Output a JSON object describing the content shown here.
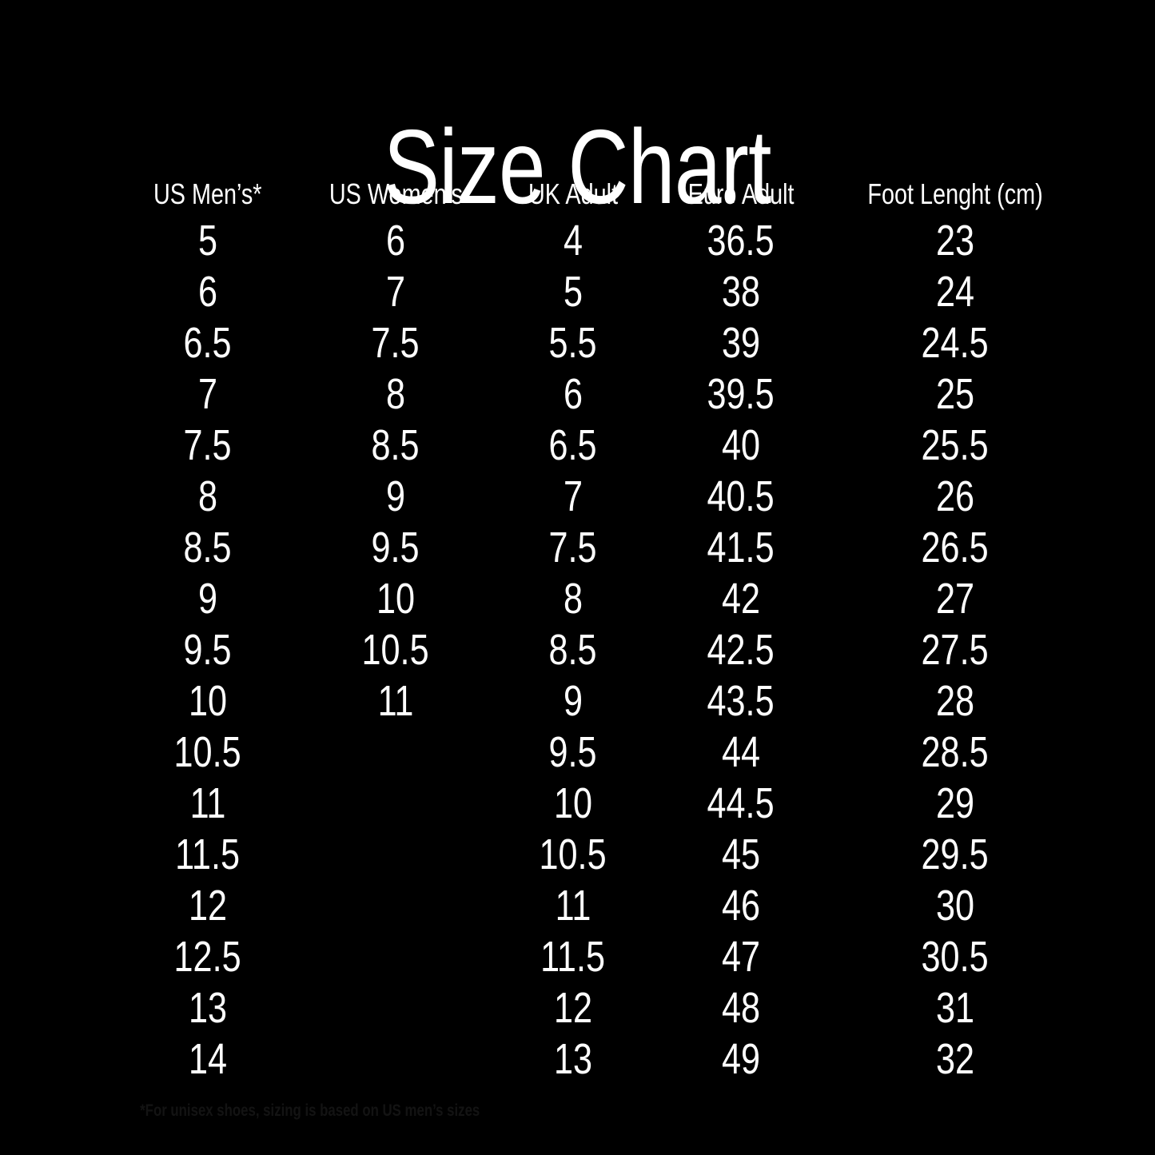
{
  "page": {
    "background_color": "#000000",
    "text_color": "#ffffff",
    "footnote_color": "#131313"
  },
  "title": "Size Chart",
  "footnote": {
    "text": "*For unisex shoes, sizing is based on US men’s sizes"
  },
  "chart_data": {
    "type": "table",
    "title": "Size Chart",
    "columns": [
      "US Men’s*",
      "US Women’s",
      "UK Adult",
      "Euro Adult",
      "Foot Lenght (cm)"
    ],
    "rows": [
      [
        "5",
        "6",
        "4",
        "36.5",
        "23"
      ],
      [
        "6",
        "7",
        "5",
        "38",
        "24"
      ],
      [
        "6.5",
        "7.5",
        "5.5",
        "39",
        "24.5"
      ],
      [
        "7",
        "8",
        "6",
        "39.5",
        "25"
      ],
      [
        "7.5",
        "8.5",
        "6.5",
        "40",
        "25.5"
      ],
      [
        "8",
        "9",
        "7",
        "40.5",
        "26"
      ],
      [
        "8.5",
        "9.5",
        "7.5",
        "41.5",
        "26.5"
      ],
      [
        "9",
        "10",
        "8",
        "42",
        "27"
      ],
      [
        "9.5",
        "10.5",
        "8.5",
        "42.5",
        "27.5"
      ],
      [
        "10",
        "11",
        "9",
        "43.5",
        "28"
      ],
      [
        "10.5",
        "",
        "9.5",
        "44",
        "28.5"
      ],
      [
        "11",
        "",
        "10",
        "44.5",
        "29"
      ],
      [
        "11.5",
        "",
        "10.5",
        "45",
        "29.5"
      ],
      [
        "12",
        "",
        "11",
        "46",
        "30"
      ],
      [
        "12.5",
        "",
        "11.5",
        "47",
        "30.5"
      ],
      [
        "13",
        "",
        "12",
        "48",
        "31"
      ],
      [
        "14",
        "",
        "13",
        "49",
        "32"
      ]
    ]
  }
}
